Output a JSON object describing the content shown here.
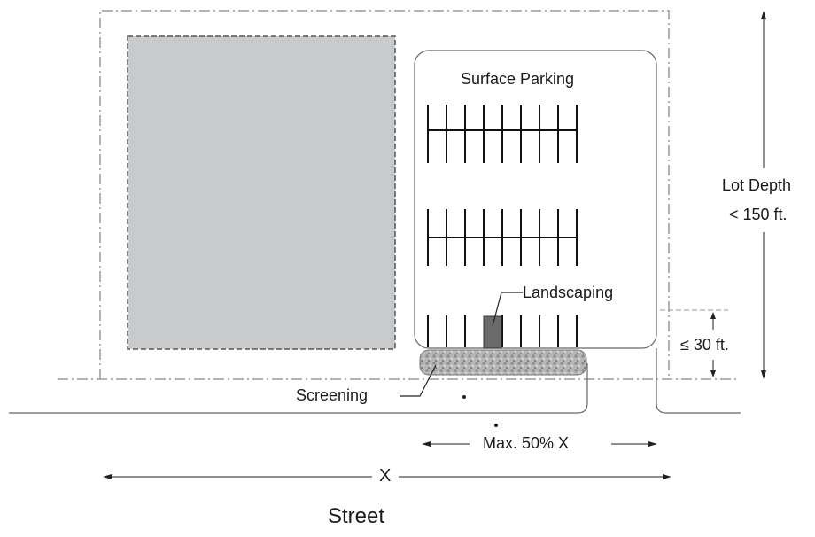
{
  "labels": {
    "surface_parking": "Surface Parking",
    "landscaping": "Landscaping",
    "screening": "Screening",
    "lot_depth_line1": "Lot Depth",
    "lot_depth_line2": "< 150 ft.",
    "max_depth": "≤ 30 ft.",
    "max_width": "Max. 50% X",
    "lot_width": "X",
    "street": "Street"
  },
  "colors": {
    "building_fill": "#c9cacc",
    "landscaping_fill": "#6b6b6b",
    "screening_fill": "#a9a9a9",
    "line": "#1a1a1a",
    "dashed_line": "#9a9a9a"
  }
}
